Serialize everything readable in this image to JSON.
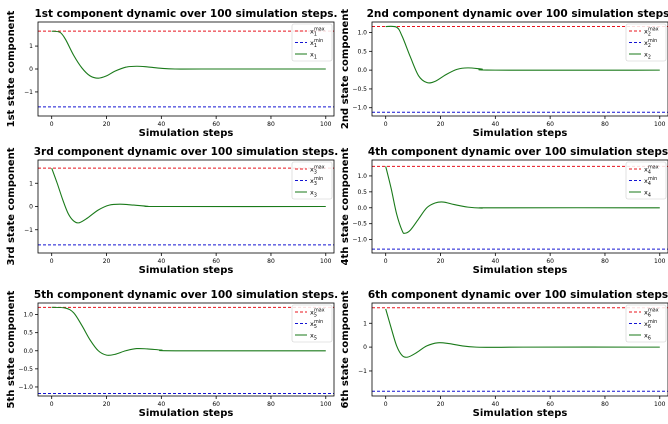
{
  "chart_data": [
    {
      "type": "line",
      "title": "1st component dynamic over 100 simulation steps.",
      "xlabel": "Simulation steps",
      "ylabel": "1st state component",
      "xlim": [
        -5,
        103
      ],
      "ylim": [
        -2.05,
        2.05
      ],
      "xticks": [
        0,
        20,
        40,
        60,
        80,
        100
      ],
      "yticks": [
        -1,
        0,
        1
      ],
      "xticklabels": [
        "0",
        "20",
        "40",
        "60",
        "80",
        "100"
      ],
      "yticklabels": [
        "−1",
        "0",
        "1"
      ],
      "legend": {
        "placement": "top-right",
        "entries": [
          {
            "base": "x",
            "sub": "1",
            "sup": "max"
          },
          {
            "base": "x",
            "sub": "1",
            "sup": "min"
          },
          {
            "base": "x",
            "sub": "1",
            "sup": ""
          }
        ]
      },
      "colors": {
        "max": "#e8141e",
        "min": "#1414d2",
        "state": "#1a7a1a"
      },
      "max_bound": 1.65,
      "min_bound": -1.65,
      "series_points": [
        [
          0,
          1.65
        ],
        [
          3,
          1.6
        ],
        [
          5,
          1.3
        ],
        [
          8,
          0.6
        ],
        [
          11,
          0.05
        ],
        [
          14,
          -0.3
        ],
        [
          17,
          -0.4
        ],
        [
          20,
          -0.3
        ],
        [
          23,
          -0.1
        ],
        [
          27,
          0.08
        ],
        [
          31,
          0.12
        ],
        [
          35,
          0.09
        ],
        [
          40,
          0.03
        ],
        [
          45,
          0.0
        ],
        [
          55,
          0.0
        ],
        [
          100,
          0.0
        ]
      ]
    },
    {
      "type": "line",
      "title": "2nd component dynamic over 100 simulation steps.",
      "xlabel": "Simulation steps",
      "ylabel": "2nd state component",
      "xlim": [
        -5,
        103
      ],
      "ylim": [
        -1.22,
        1.28
      ],
      "xticks": [
        0,
        20,
        40,
        60,
        80,
        100
      ],
      "yticks": [
        -1.0,
        -0.5,
        0.0,
        0.5,
        1.0
      ],
      "xticklabels": [
        "0",
        "20",
        "40",
        "60",
        "80",
        "100"
      ],
      "yticklabels": [
        "−1.0",
        "−0.5",
        "0.0",
        "0.5",
        "1.0"
      ],
      "legend": {
        "placement": "top-right",
        "entries": [
          {
            "base": "x",
            "sub": "2",
            "sup": "max"
          },
          {
            "base": "x",
            "sub": "2",
            "sup": "min"
          },
          {
            "base": "x",
            "sub": "2",
            "sup": ""
          }
        ]
      },
      "colors": {
        "max": "#e8141e",
        "min": "#1414d2",
        "state": "#1a7a1a"
      },
      "max_bound": 1.16,
      "min_bound": -1.12,
      "series_points": [
        [
          0,
          1.16
        ],
        [
          4,
          1.14
        ],
        [
          6,
          0.9
        ],
        [
          9,
          0.35
        ],
        [
          12,
          -0.15
        ],
        [
          15,
          -0.33
        ],
        [
          18,
          -0.3
        ],
        [
          22,
          -0.12
        ],
        [
          26,
          0.02
        ],
        [
          30,
          0.06
        ],
        [
          35,
          0.03
        ],
        [
          40,
          0.0
        ],
        [
          100,
          0.0
        ]
      ]
    },
    {
      "type": "line",
      "title": "3rd component dynamic over 100 simulation steps.",
      "xlabel": "Simulation steps",
      "ylabel": "3rd state component",
      "xlim": [
        -5,
        103
      ],
      "ylim": [
        -2.0,
        2.0
      ],
      "xticks": [
        0,
        20,
        40,
        60,
        80,
        100
      ],
      "yticks": [
        -1,
        0,
        1
      ],
      "xticklabels": [
        "0",
        "20",
        "40",
        "60",
        "80",
        "100"
      ],
      "yticklabels": [
        "−1",
        "0",
        "1"
      ],
      "legend": {
        "placement": "top-right",
        "entries": [
          {
            "base": "x",
            "sub": "3",
            "sup": "max"
          },
          {
            "base": "x",
            "sub": "3",
            "sup": "min"
          },
          {
            "base": "x",
            "sub": "3",
            "sup": ""
          }
        ]
      },
      "colors": {
        "max": "#e8141e",
        "min": "#1414d2",
        "state": "#1a7a1a"
      },
      "max_bound": 1.65,
      "min_bound": -1.65,
      "series_points": [
        [
          0,
          1.65
        ],
        [
          2,
          1.0
        ],
        [
          4,
          0.3
        ],
        [
          6,
          -0.3
        ],
        [
          8,
          -0.62
        ],
        [
          10,
          -0.7
        ],
        [
          13,
          -0.5
        ],
        [
          17,
          -0.15
        ],
        [
          21,
          0.06
        ],
        [
          25,
          0.1
        ],
        [
          30,
          0.06
        ],
        [
          35,
          0.01
        ],
        [
          40,
          0.0
        ],
        [
          100,
          0.0
        ]
      ]
    },
    {
      "type": "line",
      "title": "4th component dynamic over 100 simulation steps.",
      "xlabel": "Simulation steps",
      "ylabel": "4th state component",
      "xlim": [
        -5,
        103
      ],
      "ylim": [
        -1.42,
        1.5
      ],
      "xticks": [
        0,
        20,
        40,
        60,
        80,
        100
      ],
      "yticks": [
        -1.0,
        -0.5,
        0.0,
        0.5,
        1.0
      ],
      "xticklabels": [
        "0",
        "20",
        "40",
        "60",
        "80",
        "100"
      ],
      "yticklabels": [
        "−1.0",
        "−0.5",
        "0.0",
        "0.5",
        "1.0"
      ],
      "legend": {
        "placement": "top-right",
        "entries": [
          {
            "base": "x",
            "sub": "4",
            "sup": "max"
          },
          {
            "base": "x",
            "sub": "4",
            "sup": "min"
          },
          {
            "base": "x",
            "sub": "4",
            "sup": ""
          }
        ]
      },
      "colors": {
        "max": "#e8141e",
        "min": "#1414d2",
        "state": "#1a7a1a"
      },
      "max_bound": 1.3,
      "min_bound": -1.3,
      "series_points": [
        [
          0,
          1.3
        ],
        [
          2,
          0.6
        ],
        [
          4,
          -0.2
        ],
        [
          6,
          -0.72
        ],
        [
          7,
          -0.8
        ],
        [
          9,
          -0.7
        ],
        [
          12,
          -0.35
        ],
        [
          15,
          0.0
        ],
        [
          18,
          0.15
        ],
        [
          21,
          0.18
        ],
        [
          25,
          0.1
        ],
        [
          30,
          0.02
        ],
        [
          35,
          -0.01
        ],
        [
          40,
          0.0
        ],
        [
          100,
          0.0
        ]
      ]
    },
    {
      "type": "line",
      "title": "5th component dynamic over 100 simulation steps.",
      "xlabel": "Simulation steps",
      "ylabel": "5th state component",
      "xlim": [
        -5,
        103
      ],
      "ylim": [
        -1.25,
        1.32
      ],
      "xticks": [
        0,
        20,
        40,
        60,
        80,
        100
      ],
      "yticks": [
        -1.0,
        -0.5,
        0.0,
        0.5,
        1.0
      ],
      "xticklabels": [
        "0",
        "20",
        "40",
        "60",
        "80",
        "100"
      ],
      "yticklabels": [
        "−1.0",
        "−0.5",
        "0.0",
        "0.5",
        "1.0"
      ],
      "legend": {
        "placement": "top-right",
        "entries": [
          {
            "base": "x",
            "sub": "5",
            "sup": "max"
          },
          {
            "base": "x",
            "sub": "5",
            "sup": "min"
          },
          {
            "base": "x",
            "sub": "5",
            "sup": ""
          }
        ]
      },
      "colors": {
        "max": "#e8141e",
        "min": "#1414d2",
        "state": "#1a7a1a"
      },
      "max_bound": 1.2,
      "min_bound": -1.18,
      "series_points": [
        [
          0,
          1.2
        ],
        [
          5,
          1.18
        ],
        [
          8,
          1.05
        ],
        [
          11,
          0.7
        ],
        [
          14,
          0.3
        ],
        [
          17,
          0.0
        ],
        [
          20,
          -0.12
        ],
        [
          23,
          -0.1
        ],
        [
          27,
          0.0
        ],
        [
          31,
          0.06
        ],
        [
          35,
          0.05
        ],
        [
          40,
          0.02
        ],
        [
          45,
          0.0
        ],
        [
          100,
          0.0
        ]
      ]
    },
    {
      "type": "line",
      "title": "6th component dynamic over 100 simulation steps.",
      "xlabel": "Simulation steps",
      "ylabel": "6th state component",
      "xlim": [
        -5,
        103
      ],
      "ylim": [
        -2.05,
        1.85
      ],
      "xticks": [
        0,
        20,
        40,
        60,
        80,
        100
      ],
      "yticks": [
        -1,
        0,
        1
      ],
      "xticklabels": [
        "0",
        "20",
        "40",
        "60",
        "80",
        "100"
      ],
      "yticklabels": [
        "−1",
        "0",
        "1"
      ],
      "legend": {
        "placement": "top-right",
        "entries": [
          {
            "base": "x",
            "sub": "6",
            "sup": "max"
          },
          {
            "base": "x",
            "sub": "6",
            "sup": "min"
          },
          {
            "base": "x",
            "sub": "6",
            "sup": ""
          }
        ]
      },
      "colors": {
        "max": "#e8141e",
        "min": "#1414d2",
        "state": "#1a7a1a"
      },
      "max_bound": 1.65,
      "min_bound": -1.85,
      "series_points": [
        [
          0,
          1.6
        ],
        [
          2,
          0.8
        ],
        [
          4,
          0.05
        ],
        [
          6,
          -0.35
        ],
        [
          8,
          -0.42
        ],
        [
          11,
          -0.25
        ],
        [
          15,
          0.05
        ],
        [
          19,
          0.18
        ],
        [
          23,
          0.15
        ],
        [
          28,
          0.05
        ],
        [
          33,
          0.0
        ],
        [
          40,
          -0.01
        ],
        [
          50,
          0.0
        ],
        [
          100,
          0.0
        ]
      ]
    }
  ]
}
